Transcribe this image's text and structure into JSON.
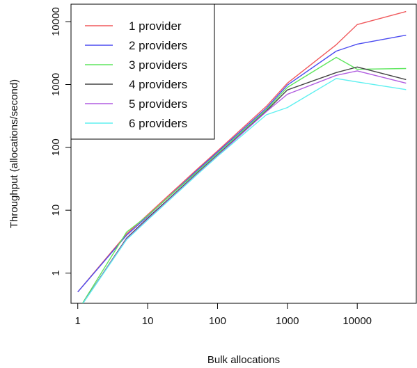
{
  "chart_data": {
    "type": "line",
    "xlabel": "Bulk allocations",
    "ylabel": "Throughput (allocations/second)",
    "x_scale": "log",
    "y_scale": "log",
    "xlim": [
      0.8,
      70000
    ],
    "ylim": [
      0.33,
      19000
    ],
    "x_ticks": [
      1,
      10,
      100,
      1000,
      10000
    ],
    "x_tick_labels": [
      "1",
      "10",
      "100",
      "1000",
      "10000"
    ],
    "y_ticks": [
      1,
      10,
      100,
      1000,
      10000
    ],
    "y_tick_labels": [
      "1",
      "10",
      "100",
      "1000",
      "10000"
    ],
    "grid": false,
    "legend_position": "top-left",
    "x": [
      1,
      5,
      10,
      50,
      100,
      500,
      1000,
      5000,
      10000,
      50000
    ],
    "series": [
      {
        "name": "1 provider",
        "color": "#f0595c",
        "values": [
          0.5,
          4.2,
          8.5,
          44,
          88,
          450,
          1050,
          4300,
          9000,
          14500
        ]
      },
      {
        "name": "2 providers",
        "color": "#4b4bf0",
        "values": [
          0.5,
          4.0,
          8.0,
          42,
          84,
          420,
          980,
          3400,
          4400,
          6100
        ]
      },
      {
        "name": "3 providers",
        "color": "#5ee65e",
        "values": [
          0.25,
          4.5,
          8.2,
          40,
          80,
          400,
          900,
          2700,
          1750,
          1800
        ]
      },
      {
        "name": "4 providers",
        "color": "#444444",
        "values": [
          0.25,
          3.6,
          7.5,
          38,
          76,
          380,
          820,
          1550,
          1900,
          1200
        ]
      },
      {
        "name": "5 providers",
        "color": "#b05ce0",
        "values": [
          0.25,
          3.5,
          7.2,
          37,
          74,
          370,
          700,
          1400,
          1650,
          1050
        ]
      },
      {
        "name": "6 providers",
        "color": "#5ef0f0",
        "values": [
          0.25,
          3.4,
          7.0,
          36,
          72,
          330,
          430,
          1250,
          1100,
          830
        ]
      }
    ]
  }
}
